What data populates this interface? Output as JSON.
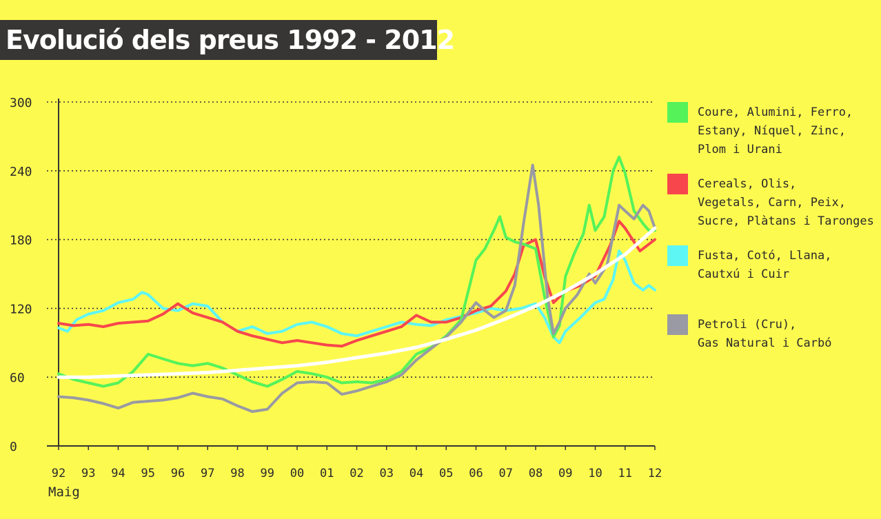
{
  "title": "Evolució dels preus 1992 - 2012",
  "chart_data": {
    "type": "line",
    "title": "Evolució dels preus 1992 - 2012",
    "xlabel": "Maig",
    "ylabel": "",
    "xlim": [
      1992,
      2012
    ],
    "ylim": [
      0,
      300
    ],
    "grid": true,
    "legend": "right",
    "x_tick_labels": [
      "92",
      "93",
      "94",
      "95",
      "96",
      "97",
      "98",
      "99",
      "00",
      "01",
      "02",
      "03",
      "04",
      "05",
      "06",
      "07",
      "08",
      "09",
      "10",
      "11",
      "12"
    ],
    "y_ticks": [
      0,
      60,
      120,
      180,
      240,
      300
    ],
    "series": [
      {
        "name": "Coure, Alumini, Ferro, Estany, Níquel, Zinc, Plom i Urani",
        "color": "#55f25a",
        "points": [
          [
            1992,
            63
          ],
          [
            1992.5,
            58
          ],
          [
            1993,
            55
          ],
          [
            1993.5,
            52
          ],
          [
            1994,
            55
          ],
          [
            1994.5,
            65
          ],
          [
            1995,
            80
          ],
          [
            1995.5,
            76
          ],
          [
            1996,
            72
          ],
          [
            1996.5,
            70
          ],
          [
            1997,
            72
          ],
          [
            1997.5,
            68
          ],
          [
            1998,
            62
          ],
          [
            1998.5,
            56
          ],
          [
            1999,
            52
          ],
          [
            1999.5,
            58
          ],
          [
            2000,
            65
          ],
          [
            2000.5,
            63
          ],
          [
            2001,
            60
          ],
          [
            2001.5,
            55
          ],
          [
            2002,
            56
          ],
          [
            2002.5,
            55
          ],
          [
            2003,
            58
          ],
          [
            2003.5,
            65
          ],
          [
            2004,
            80
          ],
          [
            2004.5,
            86
          ],
          [
            2005,
            96
          ],
          [
            2005.5,
            110
          ],
          [
            2006,
            162
          ],
          [
            2006.3,
            172
          ],
          [
            2006.6,
            188
          ],
          [
            2006.8,
            200
          ],
          [
            2007,
            182
          ],
          [
            2007.3,
            178
          ],
          [
            2007.6,
            176
          ],
          [
            2008,
            172
          ],
          [
            2008.3,
            130
          ],
          [
            2008.6,
            95
          ],
          [
            2008.8,
            105
          ],
          [
            2009,
            148
          ],
          [
            2009.3,
            168
          ],
          [
            2009.6,
            185
          ],
          [
            2009.8,
            210
          ],
          [
            2010,
            188
          ],
          [
            2010.3,
            200
          ],
          [
            2010.6,
            240
          ],
          [
            2010.8,
            252
          ],
          [
            2011,
            238
          ],
          [
            2011.3,
            205
          ],
          [
            2011.6,
            194
          ],
          [
            2011.8,
            188
          ],
          [
            2012,
            188
          ]
        ]
      },
      {
        "name": "Cereals, Olis, Vegetals, Carn, Peix, Sucre, Plàtans i Taronges",
        "color": "#f7474c",
        "points": [
          [
            1992,
            107
          ],
          [
            1992.5,
            105
          ],
          [
            1993,
            106
          ],
          [
            1993.5,
            104
          ],
          [
            1994,
            107
          ],
          [
            1994.5,
            108
          ],
          [
            1995,
            109
          ],
          [
            1995.5,
            115
          ],
          [
            1996,
            124
          ],
          [
            1996.5,
            116
          ],
          [
            1997,
            112
          ],
          [
            1997.5,
            108
          ],
          [
            1998,
            100
          ],
          [
            1998.5,
            96
          ],
          [
            1999,
            93
          ],
          [
            1999.5,
            90
          ],
          [
            2000,
            92
          ],
          [
            2000.5,
            90
          ],
          [
            2001,
            88
          ],
          [
            2001.5,
            87
          ],
          [
            2002,
            92
          ],
          [
            2002.5,
            96
          ],
          [
            2003,
            100
          ],
          [
            2003.5,
            104
          ],
          [
            2004,
            114
          ],
          [
            2004.5,
            108
          ],
          [
            2005,
            108
          ],
          [
            2005.5,
            112
          ],
          [
            2006,
            118
          ],
          [
            2006.5,
            122
          ],
          [
            2007,
            135
          ],
          [
            2007.3,
            150
          ],
          [
            2007.6,
            175
          ],
          [
            2008,
            180
          ],
          [
            2008.3,
            148
          ],
          [
            2008.6,
            125
          ],
          [
            2009,
            135
          ],
          [
            2009.5,
            140
          ],
          [
            2010,
            148
          ],
          [
            2010.5,
            175
          ],
          [
            2010.8,
            196
          ],
          [
            2011,
            190
          ],
          [
            2011.5,
            170
          ],
          [
            2012,
            180
          ]
        ]
      },
      {
        "name": "Fusta, Cotó, Llana, Cautxú i Cuir",
        "color": "#5ef6f5",
        "points": [
          [
            1992,
            103
          ],
          [
            1992.3,
            100
          ],
          [
            1992.6,
            110
          ],
          [
            1993,
            115
          ],
          [
            1993.5,
            118
          ],
          [
            1994,
            125
          ],
          [
            1994.5,
            128
          ],
          [
            1994.8,
            134
          ],
          [
            1995,
            132
          ],
          [
            1995.5,
            120
          ],
          [
            1996,
            118
          ],
          [
            1996.5,
            124
          ],
          [
            1997,
            122
          ],
          [
            1997.5,
            108
          ],
          [
            1998,
            100
          ],
          [
            1998.5,
            104
          ],
          [
            1999,
            98
          ],
          [
            1999.5,
            100
          ],
          [
            2000,
            106
          ],
          [
            2000.5,
            108
          ],
          [
            2001,
            104
          ],
          [
            2001.5,
            98
          ],
          [
            2002,
            96
          ],
          [
            2002.5,
            100
          ],
          [
            2003,
            104
          ],
          [
            2003.5,
            108
          ],
          [
            2004,
            106
          ],
          [
            2004.5,
            105
          ],
          [
            2005,
            110
          ],
          [
            2005.5,
            113
          ],
          [
            2006,
            116
          ],
          [
            2006.5,
            120
          ],
          [
            2007,
            118
          ],
          [
            2007.5,
            120
          ],
          [
            2008,
            124
          ],
          [
            2008.3,
            112
          ],
          [
            2008.6,
            95
          ],
          [
            2008.8,
            90
          ],
          [
            2009,
            100
          ],
          [
            2009.5,
            112
          ],
          [
            2010,
            125
          ],
          [
            2010.3,
            128
          ],
          [
            2010.6,
            145
          ],
          [
            2010.8,
            170
          ],
          [
            2011,
            162
          ],
          [
            2011.3,
            142
          ],
          [
            2011.6,
            136
          ],
          [
            2011.8,
            140
          ],
          [
            2012,
            136
          ]
        ]
      },
      {
        "name": "Petroli (Cru), Gas Natural i Carbó",
        "color": "#999aa3",
        "points": [
          [
            1992,
            43
          ],
          [
            1992.5,
            42
          ],
          [
            1993,
            40
          ],
          [
            1993.5,
            37
          ],
          [
            1994,
            33
          ],
          [
            1994.5,
            38
          ],
          [
            1995,
            39
          ],
          [
            1995.5,
            40
          ],
          [
            1996,
            42
          ],
          [
            1996.5,
            46
          ],
          [
            1997,
            43
          ],
          [
            1997.5,
            41
          ],
          [
            1998,
            35
          ],
          [
            1998.5,
            30
          ],
          [
            1999,
            32
          ],
          [
            1999.5,
            46
          ],
          [
            2000,
            55
          ],
          [
            2000.5,
            56
          ],
          [
            2001,
            55
          ],
          [
            2001.5,
            45
          ],
          [
            2002,
            48
          ],
          [
            2002.5,
            52
          ],
          [
            2003,
            56
          ],
          [
            2003.5,
            62
          ],
          [
            2004,
            75
          ],
          [
            2004.5,
            85
          ],
          [
            2005,
            95
          ],
          [
            2005.5,
            108
          ],
          [
            2006,
            125
          ],
          [
            2006.3,
            118
          ],
          [
            2006.6,
            112
          ],
          [
            2007,
            118
          ],
          [
            2007.3,
            140
          ],
          [
            2007.6,
            195
          ],
          [
            2007.9,
            245
          ],
          [
            2008.1,
            210
          ],
          [
            2008.4,
            130
          ],
          [
            2008.6,
            98
          ],
          [
            2008.8,
            108
          ],
          [
            2009,
            120
          ],
          [
            2009.4,
            132
          ],
          [
            2009.8,
            150
          ],
          [
            2010,
            142
          ],
          [
            2010.4,
            158
          ],
          [
            2010.8,
            210
          ],
          [
            2011,
            205
          ],
          [
            2011.3,
            198
          ],
          [
            2011.6,
            210
          ],
          [
            2011.8,
            205
          ],
          [
            2012,
            190
          ]
        ]
      },
      {
        "name": "",
        "color": "#ffffff",
        "points": [
          [
            1992,
            60
          ],
          [
            1993,
            60
          ],
          [
            1994,
            61
          ],
          [
            1995,
            62
          ],
          [
            1996,
            63
          ],
          [
            1997,
            64
          ],
          [
            1998,
            66
          ],
          [
            1999,
            68
          ],
          [
            2000,
            70
          ],
          [
            2001,
            73
          ],
          [
            2002,
            77
          ],
          [
            2003,
            81
          ],
          [
            2004,
            86
          ],
          [
            2005,
            93
          ],
          [
            2006,
            101
          ],
          [
            2007,
            111
          ],
          [
            2008,
            122
          ],
          [
            2009,
            135
          ],
          [
            2010,
            150
          ],
          [
            2011,
            167
          ],
          [
            2012,
            190
          ]
        ]
      }
    ]
  },
  "legend": [
    {
      "label": "Coure, Alumini, Ferro,\nEstany, Níquel, Zinc,\nPlom i Urani",
      "color": "#55f25a"
    },
    {
      "label": "Cereals, Olis,\nVegetals, Carn, Peix,\nSucre, Plàtans i Taronges",
      "color": "#f7474c"
    },
    {
      "label": "Fusta, Cotó, Llana,\nCautxú i Cuir",
      "color": "#5ef6f5"
    },
    {
      "label": "Petroli (Cru),\nGas Natural i Carbó",
      "color": "#999aa3"
    }
  ]
}
